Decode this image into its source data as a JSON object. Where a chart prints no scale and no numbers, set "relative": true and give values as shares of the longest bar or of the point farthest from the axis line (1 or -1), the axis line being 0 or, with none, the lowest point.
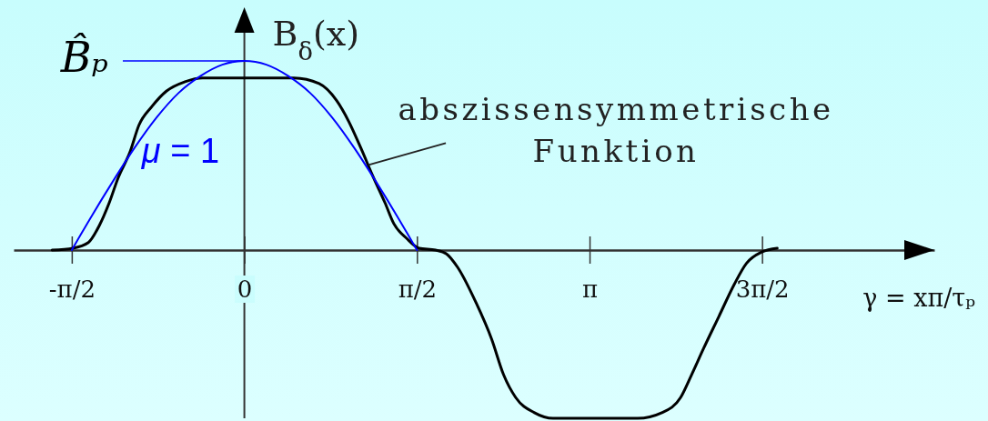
{
  "chart_data": {
    "type": "line",
    "relative": true,
    "xlabel": "γ = xπ/τₚ",
    "ylabel": "B$_{δ}$(x)",
    "xlim": [
      -2.1,
      6.28
    ],
    "xticks": [
      {
        "value": -1.571,
        "label": "-π/2"
      },
      0,
      {
        "value": 1.571,
        "label": "π/2"
      },
      {
        "value": 3.142,
        "label": "π"
      },
      {
        "value": 4.712,
        "label": "3π/2"
      }
    ],
    "series": [
      {
        "color": "#000000",
        "x": [
          -1.75,
          -1.56,
          -1.42,
          -1.32,
          -1.23,
          -1.15,
          -1.04,
          -0.96,
          -0.84,
          -0.71,
          -0.54,
          -0.38,
          0,
          0.45,
          0.68,
          0.84,
          0.95,
          1.06,
          1.17,
          1.28,
          1.36,
          1.48,
          1.59,
          1.74,
          1.84,
          1.94,
          2.11,
          2.25,
          2.36,
          2.47,
          2.64,
          2.81,
          3.58,
          3.8,
          3.97,
          4.07,
          4.18,
          4.32,
          4.46,
          4.57,
          4.71,
          4.85
        ],
        "values": [
          0,
          0.01,
          0.04,
          0.13,
          0.25,
          0.38,
          0.52,
          0.66,
          0.76,
          0.84,
          0.89,
          0.91,
          0.91,
          0.91,
          0.88,
          0.79,
          0.68,
          0.54,
          0.39,
          0.25,
          0.14,
          0.06,
          0.01,
          0,
          -0.02,
          -0.09,
          -0.28,
          -0.47,
          -0.66,
          -0.78,
          -0.86,
          -0.89,
          -0.89,
          -0.86,
          -0.78,
          -0.66,
          -0.52,
          -0.35,
          -0.18,
          -0.07,
          -0.01,
          0.01
        ]
      },
      {
        "name": "μ = 1",
        "color": "#0000ff",
        "x": [
          -1.571,
          -1.4,
          -1.2,
          -1.0,
          -0.8,
          -0.6,
          -0.4,
          -0.2,
          0,
          0.2,
          0.4,
          0.6,
          0.8,
          1.0,
          1.2,
          1.4,
          1.571
        ],
        "values": [
          0,
          0.17,
          0.36,
          0.54,
          0.7,
          0.83,
          0.92,
          0.98,
          1,
          0.98,
          0.92,
          0.83,
          0.7,
          0.54,
          0.36,
          0.17,
          0
        ]
      }
    ],
    "ref_lines": [
      {
        "axis": "y",
        "value": 1,
        "label": "B̂ₚ",
        "color": "#0000ff"
      }
    ],
    "annotations": [
      {
        "text": "abszissensymmetrische Funktion",
        "x": 1.13,
        "y": 0.45
      }
    ]
  }
}
